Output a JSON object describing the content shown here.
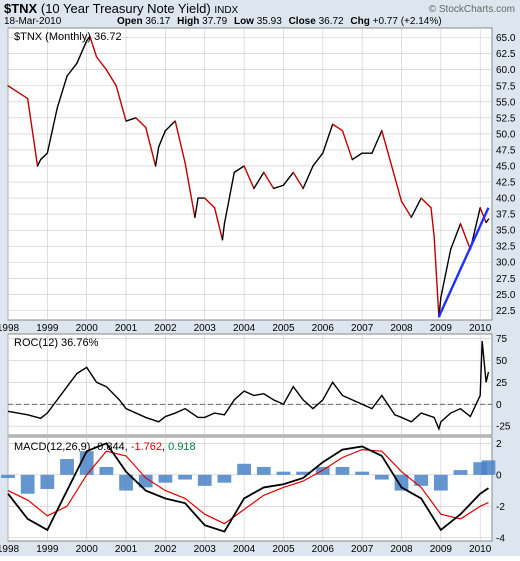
{
  "header": {
    "symbol": "$TNX",
    "description": "(10 Year Treasury Note Yield)",
    "exchange": "INDX",
    "date": "18-Mar-2010",
    "open_label": "Open",
    "open": "36.17",
    "high_label": "High",
    "high": "37.79",
    "low_label": "Low",
    "low": "35.93",
    "close_label": "Close",
    "close": "36.72",
    "chg_label": "Chg",
    "chg": "+0.77 (+2.14%)",
    "watermark": "© StockCharts.com"
  },
  "colors": {
    "background": "#dde6ee",
    "panel": "#ffffff",
    "grid": "#c8c8c8",
    "up": "#000000",
    "down": "#c00000",
    "trendline": "#2030ff",
    "roc": "#000000",
    "macd": "#000000",
    "signal": "#e00000",
    "histogram": "#4a83c6",
    "signal_text": "#e00000",
    "hist_text": "#008040"
  },
  "chart_data": [
    {
      "type": "line",
      "panel": "price",
      "legend": "$TNX (Monthly) 36.72",
      "ylim": [
        21,
        66.5
      ],
      "yticks": [
        22.5,
        25.0,
        27.5,
        30.0,
        32.5,
        35.0,
        37.5,
        40.0,
        42.5,
        45.0,
        47.5,
        50.0,
        52.5,
        55.0,
        57.5,
        60.0,
        62.5,
        65.0
      ],
      "ytick_labels": [
        "22.5",
        "25.0",
        "27.5",
        "30.0",
        "32.5",
        "35.0",
        "37.5",
        "40.0",
        "42.5",
        "45.0",
        "47.5",
        "50.0",
        "52.5",
        "55.0",
        "57.5",
        "60.0",
        "62.5",
        "65.0"
      ],
      "xlim": [
        1998.0,
        2010.3
      ],
      "xticks": [
        1998,
        1999,
        2000,
        2001,
        2002,
        2003,
        2004,
        2005,
        2006,
        2007,
        2008,
        2009,
        2010
      ],
      "xtick_labels": [
        "1998",
        "1999",
        "2000",
        "2001",
        "2002",
        "2003",
        "2004",
        "2005",
        "2006",
        "2007",
        "2008",
        "2009",
        "2010"
      ],
      "x": [
        1998.0,
        1998.25,
        1998.5,
        1998.75,
        1998.83,
        1999.0,
        1999.25,
        1999.5,
        1999.75,
        2000.0,
        2000.08,
        2000.25,
        2000.5,
        2000.75,
        2001.0,
        2001.25,
        2001.5,
        2001.75,
        2001.83,
        2002.0,
        2002.25,
        2002.5,
        2002.75,
        2002.83,
        2003.0,
        2003.25,
        2003.45,
        2003.5,
        2003.75,
        2004.0,
        2004.25,
        2004.5,
        2004.75,
        2005.0,
        2005.25,
        2005.5,
        2005.75,
        2006.0,
        2006.25,
        2006.5,
        2006.75,
        2007.0,
        2007.25,
        2007.5,
        2007.75,
        2008.0,
        2008.25,
        2008.5,
        2008.75,
        2008.83,
        2008.95,
        2009.0,
        2009.25,
        2009.5,
        2009.75,
        2010.0,
        2010.15,
        2010.21
      ],
      "values": [
        57.5,
        56.5,
        55.5,
        45.0,
        46.0,
        47.0,
        54.0,
        59.0,
        61.0,
        64.5,
        65.2,
        62.0,
        60.0,
        57.5,
        52.0,
        52.5,
        51.0,
        45.0,
        48.0,
        50.5,
        52.0,
        45.5,
        37.0,
        40.0,
        40.0,
        38.5,
        33.5,
        36.0,
        44.0,
        45.0,
        41.5,
        44.0,
        41.5,
        42.0,
        44.0,
        41.5,
        45.0,
        47.0,
        51.5,
        50.5,
        46.0,
        47.0,
        47.0,
        50.5,
        45.0,
        39.5,
        37.0,
        40.0,
        38.5,
        34.0,
        21.5,
        24.5,
        32.0,
        36.0,
        32.0,
        38.5,
        36.2,
        36.72
      ],
      "trendline": {
        "x": [
          2008.95,
          2010.21
        ],
        "values": [
          21.5,
          38.5
        ]
      }
    },
    {
      "type": "line",
      "panel": "roc",
      "legend": "ROC(12) 36.76%",
      "ylim": [
        -35,
        80
      ],
      "yticks": [
        -25,
        0,
        25,
        50,
        75
      ],
      "ytick_labels": [
        "-25",
        "0",
        "25",
        "50",
        "75"
      ],
      "zero_line": 0,
      "x": [
        1998.0,
        1998.5,
        1998.83,
        1999.0,
        1999.5,
        1999.75,
        2000.0,
        2000.25,
        2000.5,
        2000.83,
        2001.0,
        2001.5,
        2001.83,
        2002.0,
        2002.25,
        2002.5,
        2002.83,
        2003.0,
        2003.25,
        2003.5,
        2003.75,
        2004.0,
        2004.25,
        2004.5,
        2004.75,
        2005.0,
        2005.25,
        2005.5,
        2005.75,
        2006.0,
        2006.25,
        2006.5,
        2006.75,
        2007.0,
        2007.25,
        2007.5,
        2007.83,
        2008.0,
        2008.25,
        2008.5,
        2008.83,
        2008.95,
        2009.0,
        2009.25,
        2009.5,
        2009.75,
        2010.0,
        2010.05,
        2010.15,
        2010.21
      ],
      "values": [
        -8,
        -12,
        -16,
        -10,
        20,
        35,
        42,
        25,
        20,
        5,
        -5,
        -15,
        -20,
        -14,
        -10,
        -5,
        -15,
        -15,
        -10,
        -12,
        5,
        15,
        10,
        12,
        5,
        0,
        20,
        5,
        -5,
        5,
        25,
        10,
        5,
        0,
        -5,
        10,
        -12,
        -15,
        -20,
        -10,
        -15,
        -28,
        -20,
        -10,
        -5,
        -14,
        10,
        72,
        25,
        36.76
      ]
    },
    {
      "type": "line",
      "panel": "macd",
      "legend_label": "MACD(12,26,9)",
      "macd_value": "-0.844",
      "signal_value": "-1.762",
      "hist_value": "0.918",
      "ylim": [
        -4.2,
        2.4
      ],
      "yticks": [
        -4,
        -2,
        0,
        2
      ],
      "ytick_labels": [
        "-4",
        "-2",
        "0",
        "2"
      ],
      "x": [
        1998.0,
        1998.5,
        1999.0,
        1999.5,
        2000.0,
        2000.5,
        2001.0,
        2001.5,
        2002.0,
        2002.5,
        2003.0,
        2003.5,
        2004.0,
        2004.5,
        2005.0,
        2005.5,
        2006.0,
        2006.5,
        2007.0,
        2007.5,
        2008.0,
        2008.5,
        2009.0,
        2009.5,
        2010.0,
        2010.21
      ],
      "series": [
        {
          "values": [
            -1.2,
            -2.8,
            -3.5,
            -1.0,
            1.5,
            2.0,
            0.2,
            -1.0,
            -1.5,
            -1.8,
            -3.2,
            -3.6,
            -1.5,
            -0.8,
            -0.6,
            -0.2,
            0.8,
            1.6,
            1.8,
            1.2,
            -0.8,
            -1.5,
            -3.5,
            -2.5,
            -1.2,
            -0.844
          ]
        },
        {
          "values": [
            -1.0,
            -1.6,
            -2.6,
            -2.0,
            0.0,
            1.5,
            1.2,
            -0.2,
            -1.0,
            -1.5,
            -2.5,
            -3.1,
            -2.2,
            -1.3,
            -0.8,
            -0.4,
            0.3,
            1.1,
            1.6,
            1.5,
            0.2,
            -0.8,
            -2.5,
            -2.8,
            -2.0,
            -1.762
          ]
        }
      ],
      "histogram": [
        -0.2,
        -1.2,
        -0.9,
        1.0,
        1.5,
        0.5,
        -1.0,
        -0.8,
        -0.5,
        -0.3,
        -0.7,
        -0.5,
        0.7,
        0.5,
        0.2,
        0.2,
        0.5,
        0.5,
        0.2,
        -0.3,
        -1.0,
        -0.7,
        -1.0,
        0.3,
        0.8,
        0.918
      ]
    }
  ]
}
